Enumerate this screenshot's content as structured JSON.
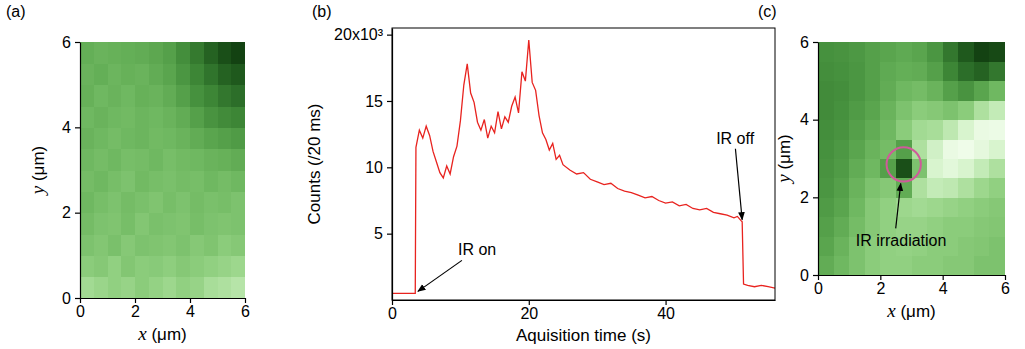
{
  "chart_data": [
    {
      "type": "heatmap",
      "title": "(a)",
      "xlabel": "x (μm)",
      "ylabel": "y (μm)",
      "xlim": [
        0,
        6
      ],
      "ylim": [
        0,
        6
      ],
      "xticks": [
        0,
        2,
        4,
        6
      ],
      "yticks": [
        0,
        2,
        4,
        6
      ],
      "x": [
        0.25,
        0.75,
        1.25,
        1.75,
        2.25,
        2.75,
        3.25,
        3.75,
        4.25,
        4.75,
        5.25,
        5.75
      ],
      "y": [
        0.25,
        0.75,
        1.25,
        1.75,
        2.25,
        2.75,
        3.25,
        3.75,
        4.25,
        4.75,
        5.25,
        5.75
      ],
      "values": [
        [
          0.68,
          0.65,
          0.62,
          0.64,
          0.6,
          0.63,
          0.66,
          0.62,
          0.64,
          0.7,
          0.72,
          0.75
        ],
        [
          0.6,
          0.58,
          0.62,
          0.57,
          0.6,
          0.59,
          0.61,
          0.58,
          0.6,
          0.62,
          0.64,
          0.66
        ],
        [
          0.55,
          0.57,
          0.54,
          0.58,
          0.55,
          0.56,
          0.57,
          0.55,
          0.58,
          0.56,
          0.6,
          0.58
        ],
        [
          0.52,
          0.55,
          0.56,
          0.53,
          0.57,
          0.54,
          0.55,
          0.56,
          0.53,
          0.55,
          0.56,
          0.55
        ],
        [
          0.5,
          0.53,
          0.55,
          0.52,
          0.54,
          0.56,
          0.53,
          0.55,
          0.52,
          0.54,
          0.53,
          0.55
        ],
        [
          0.52,
          0.5,
          0.53,
          0.55,
          0.51,
          0.53,
          0.54,
          0.52,
          0.53,
          0.5,
          0.52,
          0.5
        ],
        [
          0.5,
          0.52,
          0.5,
          0.53,
          0.52,
          0.5,
          0.53,
          0.51,
          0.5,
          0.48,
          0.47,
          0.45
        ],
        [
          0.48,
          0.5,
          0.52,
          0.5,
          0.49,
          0.51,
          0.5,
          0.48,
          0.45,
          0.42,
          0.4,
          0.38
        ],
        [
          0.5,
          0.48,
          0.5,
          0.51,
          0.49,
          0.5,
          0.48,
          0.45,
          0.4,
          0.35,
          0.32,
          0.3
        ],
        [
          0.47,
          0.5,
          0.48,
          0.5,
          0.47,
          0.48,
          0.45,
          0.4,
          0.34,
          0.3,
          0.25,
          0.22
        ],
        [
          0.48,
          0.46,
          0.49,
          0.47,
          0.48,
          0.45,
          0.42,
          0.36,
          0.3,
          0.24,
          0.18,
          0.15
        ],
        [
          0.46,
          0.48,
          0.47,
          0.46,
          0.45,
          0.43,
          0.4,
          0.33,
          0.26,
          0.18,
          0.12,
          0.08
        ]
      ]
    },
    {
      "type": "line",
      "title": "(b)",
      "xlabel": "Aquisition time (s)",
      "ylabel": "Counts (/20 ms)",
      "color": "#e8231f",
      "grid": false,
      "xlim": [
        0,
        56
      ],
      "ylim": [
        0,
        20.5
      ],
      "xticks": [
        0,
        20,
        40
      ],
      "yticks": [
        5,
        10,
        15,
        {
          "value": 20,
          "label": "20x10³"
        }
      ],
      "x": [
        0,
        1,
        2,
        3,
        3.4,
        3.5,
        4,
        4.5,
        5,
        5.5,
        6,
        6.5,
        7,
        7.5,
        8,
        8.5,
        9,
        9.5,
        10,
        10.5,
        11,
        11.5,
        12,
        12.5,
        13,
        13.5,
        14,
        14.5,
        15,
        15.5,
        16,
        16.5,
        17,
        17.5,
        18,
        18.5,
        19,
        19.5,
        20,
        20.5,
        21,
        21.5,
        22,
        22.5,
        23,
        23.5,
        24,
        24.5,
        25,
        26,
        27,
        28,
        29,
        30,
        31,
        32,
        33,
        34,
        35,
        36,
        37,
        38,
        39,
        40,
        41,
        42,
        43,
        44,
        45,
        46,
        47,
        48,
        49,
        50,
        50.5,
        51,
        51.2,
        51.4,
        52,
        53,
        54,
        55,
        56
      ],
      "values": [
        0.5,
        0.5,
        0.5,
        0.5,
        0.5,
        11.5,
        12.8,
        12.2,
        13.1,
        12.4,
        11.2,
        10.4,
        9.6,
        9.2,
        10.1,
        9.5,
        10.8,
        11.6,
        13.5,
        16.2,
        17.8,
        15.6,
        14.9,
        13.4,
        12.8,
        13.6,
        12.2,
        13.1,
        12.6,
        14.2,
        12.9,
        13.8,
        13.4,
        14.6,
        15.3,
        14.1,
        17.2,
        16.5,
        19.6,
        16.4,
        15.8,
        13.9,
        12.6,
        12.1,
        11.3,
        11.8,
        10.6,
        10.9,
        10.2,
        9.8,
        9.5,
        9.6,
        9.1,
        8.9,
        8.7,
        8.8,
        8.4,
        8.2,
        8.1,
        7.9,
        7.7,
        7.8,
        7.5,
        7.3,
        7.4,
        7.1,
        7.2,
        6.9,
        6.8,
        6.9,
        6.6,
        6.5,
        6.4,
        6.2,
        6.3,
        6.0,
        5.9,
        1.2,
        1.1,
        1.0,
        1.1,
        1.0,
        0.9
      ],
      "annotations": [
        {
          "text": "IR on",
          "x": 3.5,
          "y": 0.5
        },
        {
          "text": "IR off",
          "x": 51.2,
          "y": 5.9
        }
      ]
    },
    {
      "type": "heatmap",
      "title": "(c)",
      "xlabel": "x (μm)",
      "ylabel": "y (μm)",
      "xlim": [
        0,
        6
      ],
      "ylim": [
        0,
        6
      ],
      "xticks": [
        0,
        2,
        4,
        6
      ],
      "yticks": [
        0,
        2,
        4,
        6
      ],
      "x": [
        0.25,
        0.75,
        1.25,
        1.75,
        2.25,
        2.75,
        3.25,
        3.75,
        4.25,
        4.75,
        5.25,
        5.75
      ],
      "y": [
        0.25,
        0.75,
        1.25,
        1.75,
        2.25,
        2.75,
        3.25,
        3.75,
        4.25,
        4.75,
        5.25,
        5.75
      ],
      "values": [
        [
          0.45,
          0.5,
          0.55,
          0.6,
          0.62,
          0.62,
          0.6,
          0.6,
          0.58,
          0.58,
          0.55,
          0.55
        ],
        [
          0.42,
          0.48,
          0.55,
          0.6,
          0.62,
          0.63,
          0.62,
          0.6,
          0.6,
          0.58,
          0.57,
          0.55
        ],
        [
          0.4,
          0.45,
          0.52,
          0.58,
          0.62,
          0.64,
          0.64,
          0.62,
          0.6,
          0.6,
          0.58,
          0.57
        ],
        [
          0.38,
          0.42,
          0.5,
          0.58,
          0.62,
          0.66,
          0.68,
          0.66,
          0.64,
          0.62,
          0.6,
          0.58
        ],
        [
          0.36,
          0.4,
          0.48,
          0.55,
          0.58,
          0.45,
          0.72,
          0.8,
          0.78,
          0.72,
          0.66,
          0.62
        ],
        [
          0.35,
          0.38,
          0.45,
          0.5,
          0.4,
          0.12,
          0.55,
          0.88,
          0.92,
          0.88,
          0.8,
          0.72
        ],
        [
          0.34,
          0.37,
          0.42,
          0.48,
          0.52,
          0.4,
          0.72,
          0.85,
          0.95,
          0.97,
          0.93,
          0.88
        ],
        [
          0.33,
          0.35,
          0.4,
          0.45,
          0.5,
          0.6,
          0.68,
          0.7,
          0.78,
          0.88,
          0.95,
          0.96
        ],
        [
          0.32,
          0.34,
          0.38,
          0.42,
          0.48,
          0.55,
          0.6,
          0.58,
          0.55,
          0.6,
          0.72,
          0.8
        ],
        [
          0.32,
          0.33,
          0.36,
          0.4,
          0.45,
          0.5,
          0.52,
          0.48,
          0.4,
          0.35,
          0.42,
          0.5
        ],
        [
          0.33,
          0.34,
          0.36,
          0.4,
          0.44,
          0.46,
          0.45,
          0.4,
          0.3,
          0.22,
          0.18,
          0.25
        ],
        [
          0.34,
          0.35,
          0.37,
          0.4,
          0.42,
          0.44,
          0.42,
          0.36,
          0.25,
          0.15,
          0.08,
          0.1
        ]
      ],
      "annotations": [
        {
          "text": "IR irradiation",
          "x": 2.75,
          "y": 2.85,
          "r": 0.55
        }
      ]
    }
  ]
}
